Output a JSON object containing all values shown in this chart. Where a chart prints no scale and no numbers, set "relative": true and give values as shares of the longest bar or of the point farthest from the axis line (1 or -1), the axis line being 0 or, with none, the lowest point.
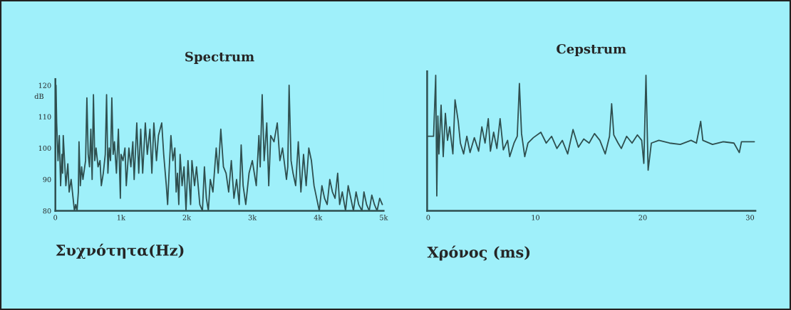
{
  "chart_data": [
    {
      "type": "line",
      "title": "Spectrum",
      "xlabel": "Συχνότητα(Hz)",
      "ylabel": "dB",
      "xlim": [
        0,
        5000
      ],
      "xticks": [
        0,
        {
          "value": 1000,
          "label": "1k"
        },
        {
          "value": 2000,
          "label": "2k"
        },
        {
          "value": 3000,
          "label": "3k"
        },
        {
          "value": 4000,
          "label": "4k"
        },
        {
          "value": 5000,
          "label": "5k"
        }
      ],
      "ylim": [
        80,
        122
      ],
      "yticks": [
        80,
        90,
        100,
        110,
        120
      ],
      "series": [
        {
          "color": "#2f4f4f",
          "x": [
            0,
            10,
            20,
            40,
            60,
            80,
            100,
            110,
            120,
            140,
            160,
            190,
            210,
            240,
            270,
            290,
            310,
            330,
            350,
            360,
            380,
            400,
            420,
            460,
            480,
            500,
            520,
            540,
            560,
            580,
            600,
            620,
            650,
            680,
            700,
            730,
            760,
            780,
            800,
            820,
            840,
            860,
            880,
            900,
            930,
            960,
            990,
            1000,
            1030,
            1060,
            1080,
            1120,
            1150,
            1180,
            1200,
            1240,
            1270,
            1300,
            1330,
            1370,
            1400,
            1440,
            1470,
            1500,
            1540,
            1570,
            1620,
            1650,
            1690,
            1710,
            1740,
            1760,
            1790,
            1820,
            1840,
            1860,
            1880,
            1900,
            1930,
            1960,
            1990,
            2020,
            2060,
            2080,
            2120,
            2150,
            2200,
            2240,
            2270,
            2300,
            2330,
            2360,
            2400,
            2450,
            2480,
            2520,
            2560,
            2600,
            2640,
            2680,
            2720,
            2760,
            2800,
            2830,
            2860,
            2900,
            2950,
            3000,
            3060,
            3100,
            3120,
            3150,
            3180,
            3220,
            3250,
            3280,
            3330,
            3380,
            3420,
            3460,
            3520,
            3540,
            3560,
            3590,
            3620,
            3660,
            3700,
            3740,
            3780,
            3820,
            3860,
            3900,
            3940,
            3980,
            4020,
            4060,
            4100,
            4140,
            4180,
            4220,
            4260,
            4300,
            4330,
            4370,
            4420,
            4460,
            4500,
            4540,
            4580,
            4620,
            4670,
            4700,
            4740,
            4780,
            4820,
            4860,
            4900,
            4940,
            4980
          ],
          "values": [
            100,
            120,
            108,
            96,
            104,
            88,
            98,
            92,
            104,
            96,
            88,
            95,
            86,
            90,
            84,
            80,
            82,
            80,
            86,
            102,
            88,
            94,
            90,
            96,
            116,
            98,
            94,
            106,
            90,
            117,
            96,
            100,
            94,
            96,
            88,
            92,
            98,
            117,
            92,
            100,
            96,
            116,
            98,
            102,
            92,
            106,
            84,
            98,
            96,
            100,
            88,
            100,
            94,
            102,
            90,
            108,
            92,
            106,
            92,
            108,
            98,
            106,
            92,
            108,
            96,
            104,
            108,
            98,
            88,
            82,
            96,
            104,
            96,
            100,
            86,
            92,
            82,
            98,
            88,
            94,
            80,
            96,
            82,
            96,
            88,
            94,
            82,
            80,
            94,
            84,
            80,
            90,
            86,
            100,
            92,
            106,
            94,
            92,
            86,
            96,
            84,
            90,
            82,
            101,
            88,
            82,
            92,
            96,
            88,
            104,
            94,
            117,
            96,
            108,
            88,
            104,
            102,
            108,
            96,
            100,
            90,
            94,
            120,
            96,
            92,
            88,
            102,
            86,
            98,
            88,
            100,
            96,
            88,
            84,
            80,
            88,
            84,
            82,
            90,
            86,
            84,
            92,
            82,
            86,
            80,
            88,
            84,
            80,
            86,
            82,
            80,
            86,
            82,
            80,
            85,
            82,
            80,
            84,
            82
          ]
        }
      ]
    },
    {
      "type": "line",
      "title": "Cepstrum",
      "xlabel": "Χρόνος (ms)",
      "relative": true,
      "tick_labels": "x",
      "xlim": [
        -0.1,
        30.5
      ],
      "xticks": [
        0,
        10,
        20,
        30
      ],
      "series": [
        {
          "color": "#2f4f4f",
          "x": [
            0,
            0.5,
            0.7,
            0.8,
            0.9,
            1.0,
            1.2,
            1.4,
            1.6,
            1.8,
            2.0,
            2.3,
            2.5,
            2.8,
            3.0,
            3.3,
            3.6,
            3.9,
            4.3,
            4.7,
            5.0,
            5.3,
            5.6,
            5.8,
            6.1,
            6.4,
            6.7,
            7.0,
            7.4,
            7.6,
            8.0,
            8.3,
            8.5,
            8.7,
            9.0,
            9.3,
            9.8,
            10.5,
            11,
            11.5,
            12,
            12.5,
            13,
            13.5,
            14,
            14.5,
            15,
            15.5,
            16,
            16.5,
            16.9,
            17.1,
            17.3,
            17.7,
            18,
            18.5,
            19,
            19.5,
            19.9,
            20.1,
            20.3,
            20.5,
            20.8,
            21.5,
            22.5,
            23.5,
            24.5,
            25.0,
            25.4,
            25.6,
            26.5,
            27.5,
            28.5,
            29.0,
            29.2,
            30.0,
            30.4
          ],
          "values": [
            0.55,
            0.55,
            1.0,
            0.11,
            0.7,
            0.42,
            0.78,
            0.4,
            0.72,
            0.52,
            0.62,
            0.42,
            0.82,
            0.66,
            0.5,
            0.42,
            0.55,
            0.43,
            0.54,
            0.44,
            0.62,
            0.5,
            0.68,
            0.44,
            0.58,
            0.46,
            0.68,
            0.45,
            0.52,
            0.4,
            0.5,
            0.55,
            0.94,
            0.57,
            0.4,
            0.5,
            0.54,
            0.58,
            0.5,
            0.55,
            0.46,
            0.52,
            0.42,
            0.6,
            0.47,
            0.53,
            0.5,
            0.57,
            0.52,
            0.42,
            0.55,
            0.79,
            0.56,
            0.5,
            0.46,
            0.55,
            0.5,
            0.56,
            0.52,
            0.35,
            1.0,
            0.3,
            0.5,
            0.52,
            0.5,
            0.49,
            0.52,
            0.5,
            0.66,
            0.52,
            0.49,
            0.51,
            0.5,
            0.43,
            0.51,
            0.51,
            0.51
          ]
        }
      ]
    }
  ]
}
